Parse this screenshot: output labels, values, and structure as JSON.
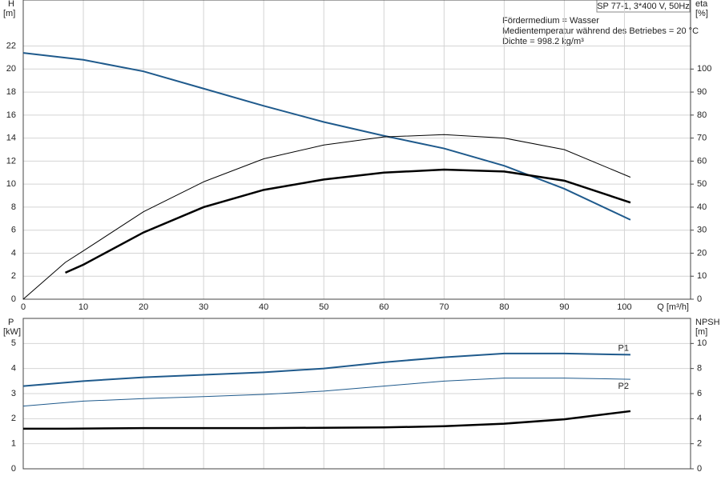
{
  "title": "SP 77-1, 3*400 V, 50Hz",
  "notes": [
    "Fördermedium = Wasser",
    "Medientemperatur während des Betriebes = 20 °C",
    "Dichte = 998.2 kg/m³"
  ],
  "chart_data": [
    {
      "type": "line",
      "x_label": "Q [m³/h]",
      "y_label": "H",
      "y_unit": "[m]",
      "y2_label": "eta",
      "y2_unit": "[%]",
      "xlim": [
        0,
        111
      ],
      "xticks": [
        0,
        10,
        20,
        30,
        40,
        50,
        60,
        70,
        80,
        90,
        100
      ],
      "ylim": [
        0,
        26
      ],
      "yticks": [
        0,
        2,
        4,
        6,
        8,
        10,
        12,
        14,
        16,
        18,
        20,
        22
      ],
      "y2lim": [
        0,
        130
      ],
      "y2ticks": [
        0,
        10,
        20,
        30,
        40,
        50,
        60,
        70,
        80,
        90,
        100
      ],
      "grid": true,
      "series": [
        {
          "color": "#1f5a8c",
          "width": 2,
          "x": [
            0,
            10,
            20,
            30,
            40,
            50,
            60,
            70,
            80,
            90,
            101
          ],
          "values": [
            21.4,
            20.8,
            19.8,
            18.3,
            16.8,
            15.4,
            14.2,
            13.1,
            11.6,
            9.6,
            6.9
          ]
        },
        {
          "color": "#000000",
          "width": 1,
          "axis": "y2",
          "x": [
            0,
            7,
            10,
            20,
            30,
            40,
            50,
            60,
            70,
            80,
            90,
            101
          ],
          "values": [
            0,
            16,
            21,
            38,
            51,
            61,
            67,
            70.5,
            71.5,
            70,
            65,
            53
          ]
        },
        {
          "color": "#000000",
          "width": 2.5,
          "axis": "y2",
          "x": [
            7,
            10,
            20,
            30,
            40,
            50,
            60,
            70,
            80,
            90,
            101
          ],
          "values": [
            11.5,
            15,
            29,
            40,
            47.5,
            52,
            55,
            56.3,
            55.5,
            51.5,
            42
          ]
        }
      ]
    },
    {
      "type": "line",
      "y_label": "P",
      "y_unit": "[kW]",
      "y2_label": "NPSH",
      "y2_unit": "[m]",
      "xlim": [
        0,
        111
      ],
      "xticks": [
        0,
        10,
        20,
        30,
        40,
        50,
        60,
        70,
        80,
        90,
        100
      ],
      "ylim": [
        0,
        6
      ],
      "yticks": [
        0,
        1,
        2,
        3,
        4,
        5
      ],
      "y2lim": [
        0,
        12
      ],
      "y2ticks": [
        0,
        2,
        4,
        6,
        8,
        10
      ],
      "grid": true,
      "series": [
        {
          "name": "P1",
          "color": "#1f5a8c",
          "width": 2,
          "x": [
            0,
            10,
            20,
            30,
            40,
            50,
            60,
            70,
            80,
            90,
            101
          ],
          "values": [
            3.3,
            3.5,
            3.65,
            3.75,
            3.85,
            4.0,
            4.25,
            4.45,
            4.6,
            4.6,
            4.55
          ]
        },
        {
          "name": "P2",
          "color": "#1f5a8c",
          "width": 1,
          "x": [
            0,
            10,
            20,
            30,
            40,
            50,
            60,
            70,
            80,
            90,
            101
          ],
          "values": [
            2.5,
            2.7,
            2.8,
            2.88,
            2.97,
            3.1,
            3.3,
            3.5,
            3.62,
            3.62,
            3.57
          ]
        },
        {
          "color": "#000000",
          "width": 2.5,
          "axis": "y2",
          "x": [
            0,
            7,
            20,
            40,
            60,
            70,
            80,
            90,
            101
          ],
          "values": [
            3.2,
            3.2,
            3.25,
            3.25,
            3.3,
            3.4,
            3.6,
            3.95,
            4.6
          ]
        }
      ]
    }
  ]
}
